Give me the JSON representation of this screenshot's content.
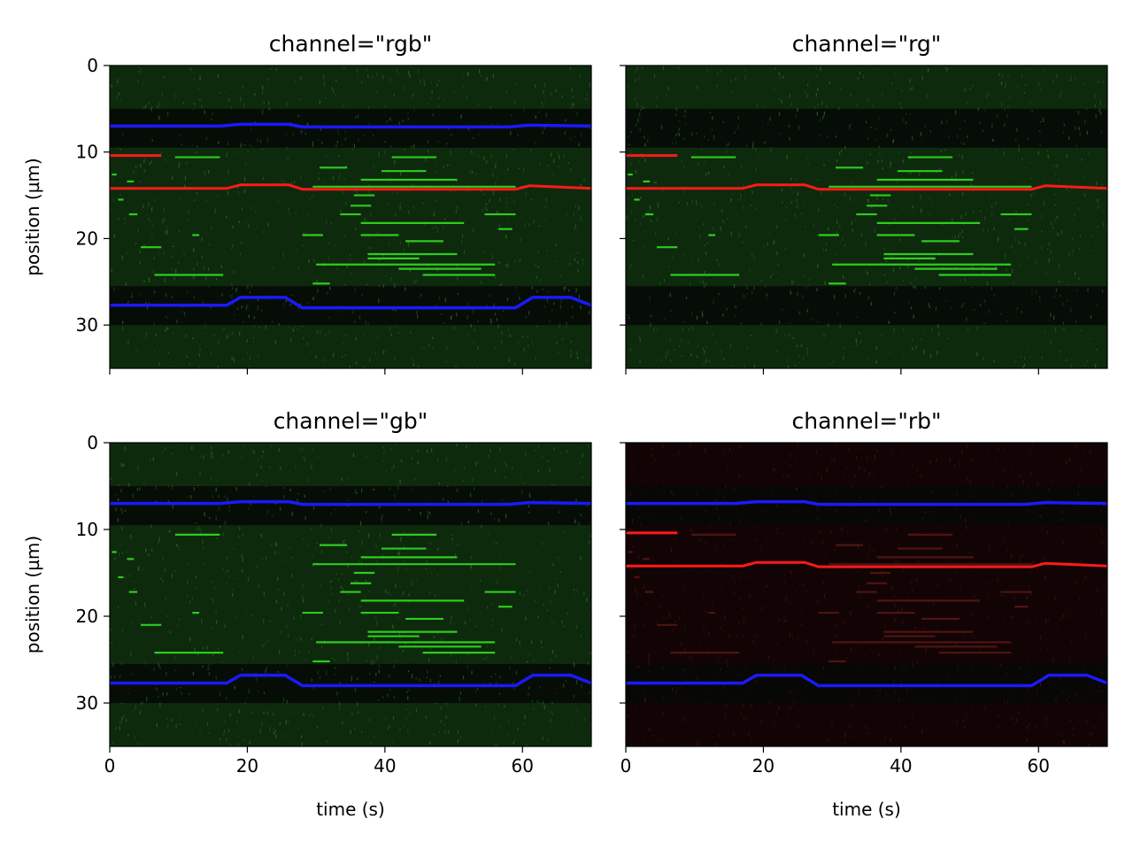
{
  "figure": {
    "background": "#ffffff"
  },
  "chart_data": [
    {
      "type": "heatmap",
      "title": "channel=\"rgb\"",
      "channels": [
        "r",
        "g",
        "b"
      ],
      "xlabel": "",
      "ylabel": "position (µm)",
      "xlim": [
        0,
        70
      ],
      "ylim": [
        35,
        0
      ],
      "xticks": [
        "0",
        "20",
        "40",
        "60"
      ],
      "yticks": [
        "0",
        "10",
        "20",
        "30"
      ],
      "show_xtick_labels": false,
      "show_ytick_labels": true
    },
    {
      "type": "heatmap",
      "title": "channel=\"rg\"",
      "channels": [
        "r",
        "g"
      ],
      "xlabel": "",
      "ylabel": "",
      "xlim": [
        0,
        70
      ],
      "ylim": [
        35,
        0
      ],
      "xticks": [
        "0",
        "20",
        "40",
        "60"
      ],
      "yticks": [
        "0",
        "10",
        "20",
        "30"
      ],
      "show_xtick_labels": false,
      "show_ytick_labels": false
    },
    {
      "type": "heatmap",
      "title": "channel=\"gb\"",
      "channels": [
        "g",
        "b"
      ],
      "xlabel": "time (s)",
      "ylabel": "position (µm)",
      "xlim": [
        0,
        70
      ],
      "ylim": [
        35,
        0
      ],
      "xticks": [
        "0",
        "20",
        "40",
        "60"
      ],
      "yticks": [
        "0",
        "10",
        "20",
        "30"
      ],
      "show_xtick_labels": true,
      "show_ytick_labels": true
    },
    {
      "type": "heatmap",
      "title": "channel=\"rb\"",
      "channels": [
        "r",
        "b"
      ],
      "xlabel": "time (s)",
      "ylabel": "",
      "xlim": [
        0,
        70
      ],
      "ylim": [
        35,
        0
      ],
      "xticks": [
        "0",
        "20",
        "40",
        "60"
      ],
      "yticks": [
        "0",
        "10",
        "20",
        "30"
      ],
      "show_xtick_labels": true,
      "show_ytick_labels": false
    }
  ],
  "kymograph": {
    "colors": {
      "red": "#ff1a1a",
      "green": "#33dd22",
      "blue": "#1a1aff",
      "background_green": "#0d2a0d",
      "background_dark": "#060806",
      "background_red": "#120404"
    },
    "blue_traces": [
      {
        "t": [
          0,
          16,
          19,
          26,
          28,
          58,
          61,
          70
        ],
        "pos": [
          7.0,
          7.0,
          6.8,
          6.8,
          7.1,
          7.1,
          6.9,
          7.0
        ]
      },
      {
        "t": [
          0,
          17,
          19,
          25.5,
          28,
          59,
          61.5,
          67,
          70
        ],
        "pos": [
          27.7,
          27.7,
          26.8,
          26.8,
          28.0,
          28.0,
          26.8,
          26.8,
          27.7
        ]
      }
    ],
    "red_traces": [
      {
        "t": [
          0,
          7.5
        ],
        "pos": [
          10.4,
          10.4
        ]
      },
      {
        "t": [
          0,
          17,
          19,
          26,
          28,
          59,
          61,
          70
        ],
        "pos": [
          14.2,
          14.2,
          13.8,
          13.8,
          14.3,
          14.3,
          13.9,
          14.2
        ]
      }
    ],
    "green_segments": [
      {
        "t0": 9.5,
        "t1": 16,
        "pos": 10.6
      },
      {
        "t0": 0.3,
        "t1": 1.0,
        "pos": 12.6
      },
      {
        "t0": 2.5,
        "t1": 3.5,
        "pos": 13.4
      },
      {
        "t0": 2.8,
        "t1": 4.0,
        "pos": 17.2
      },
      {
        "t0": 1.2,
        "t1": 2.0,
        "pos": 15.5
      },
      {
        "t0": 4.5,
        "t1": 7.5,
        "pos": 21.0
      },
      {
        "t0": 6.5,
        "t1": 16.5,
        "pos": 24.2
      },
      {
        "t0": 12.0,
        "t1": 13.0,
        "pos": 19.6
      },
      {
        "t0": 30.5,
        "t1": 34.5,
        "pos": 11.8
      },
      {
        "t0": 41.0,
        "t1": 47.5,
        "pos": 10.6
      },
      {
        "t0": 39.5,
        "t1": 46.0,
        "pos": 12.2
      },
      {
        "t0": 36.5,
        "t1": 50.5,
        "pos": 13.2
      },
      {
        "t0": 29.5,
        "t1": 59.0,
        "pos": 14.0
      },
      {
        "t0": 35.5,
        "t1": 38.5,
        "pos": 15.0
      },
      {
        "t0": 35.0,
        "t1": 38.0,
        "pos": 16.2
      },
      {
        "t0": 33.5,
        "t1": 36.5,
        "pos": 17.2
      },
      {
        "t0": 54.5,
        "t1": 59.0,
        "pos": 17.2
      },
      {
        "t0": 36.5,
        "t1": 51.5,
        "pos": 18.2
      },
      {
        "t0": 56.5,
        "t1": 58.5,
        "pos": 18.9
      },
      {
        "t0": 28.0,
        "t1": 31.0,
        "pos": 19.6
      },
      {
        "t0": 36.5,
        "t1": 42.0,
        "pos": 19.6
      },
      {
        "t0": 43.0,
        "t1": 48.5,
        "pos": 20.3
      },
      {
        "t0": 37.5,
        "t1": 50.5,
        "pos": 21.8
      },
      {
        "t0": 37.5,
        "t1": 45.0,
        "pos": 22.3
      },
      {
        "t0": 30.0,
        "t1": 56.0,
        "pos": 23.0
      },
      {
        "t0": 42.0,
        "t1": 54.0,
        "pos": 23.5
      },
      {
        "t0": 45.5,
        "t1": 56.0,
        "pos": 24.2
      },
      {
        "t0": 29.5,
        "t1": 32.0,
        "pos": 25.2
      }
    ]
  }
}
